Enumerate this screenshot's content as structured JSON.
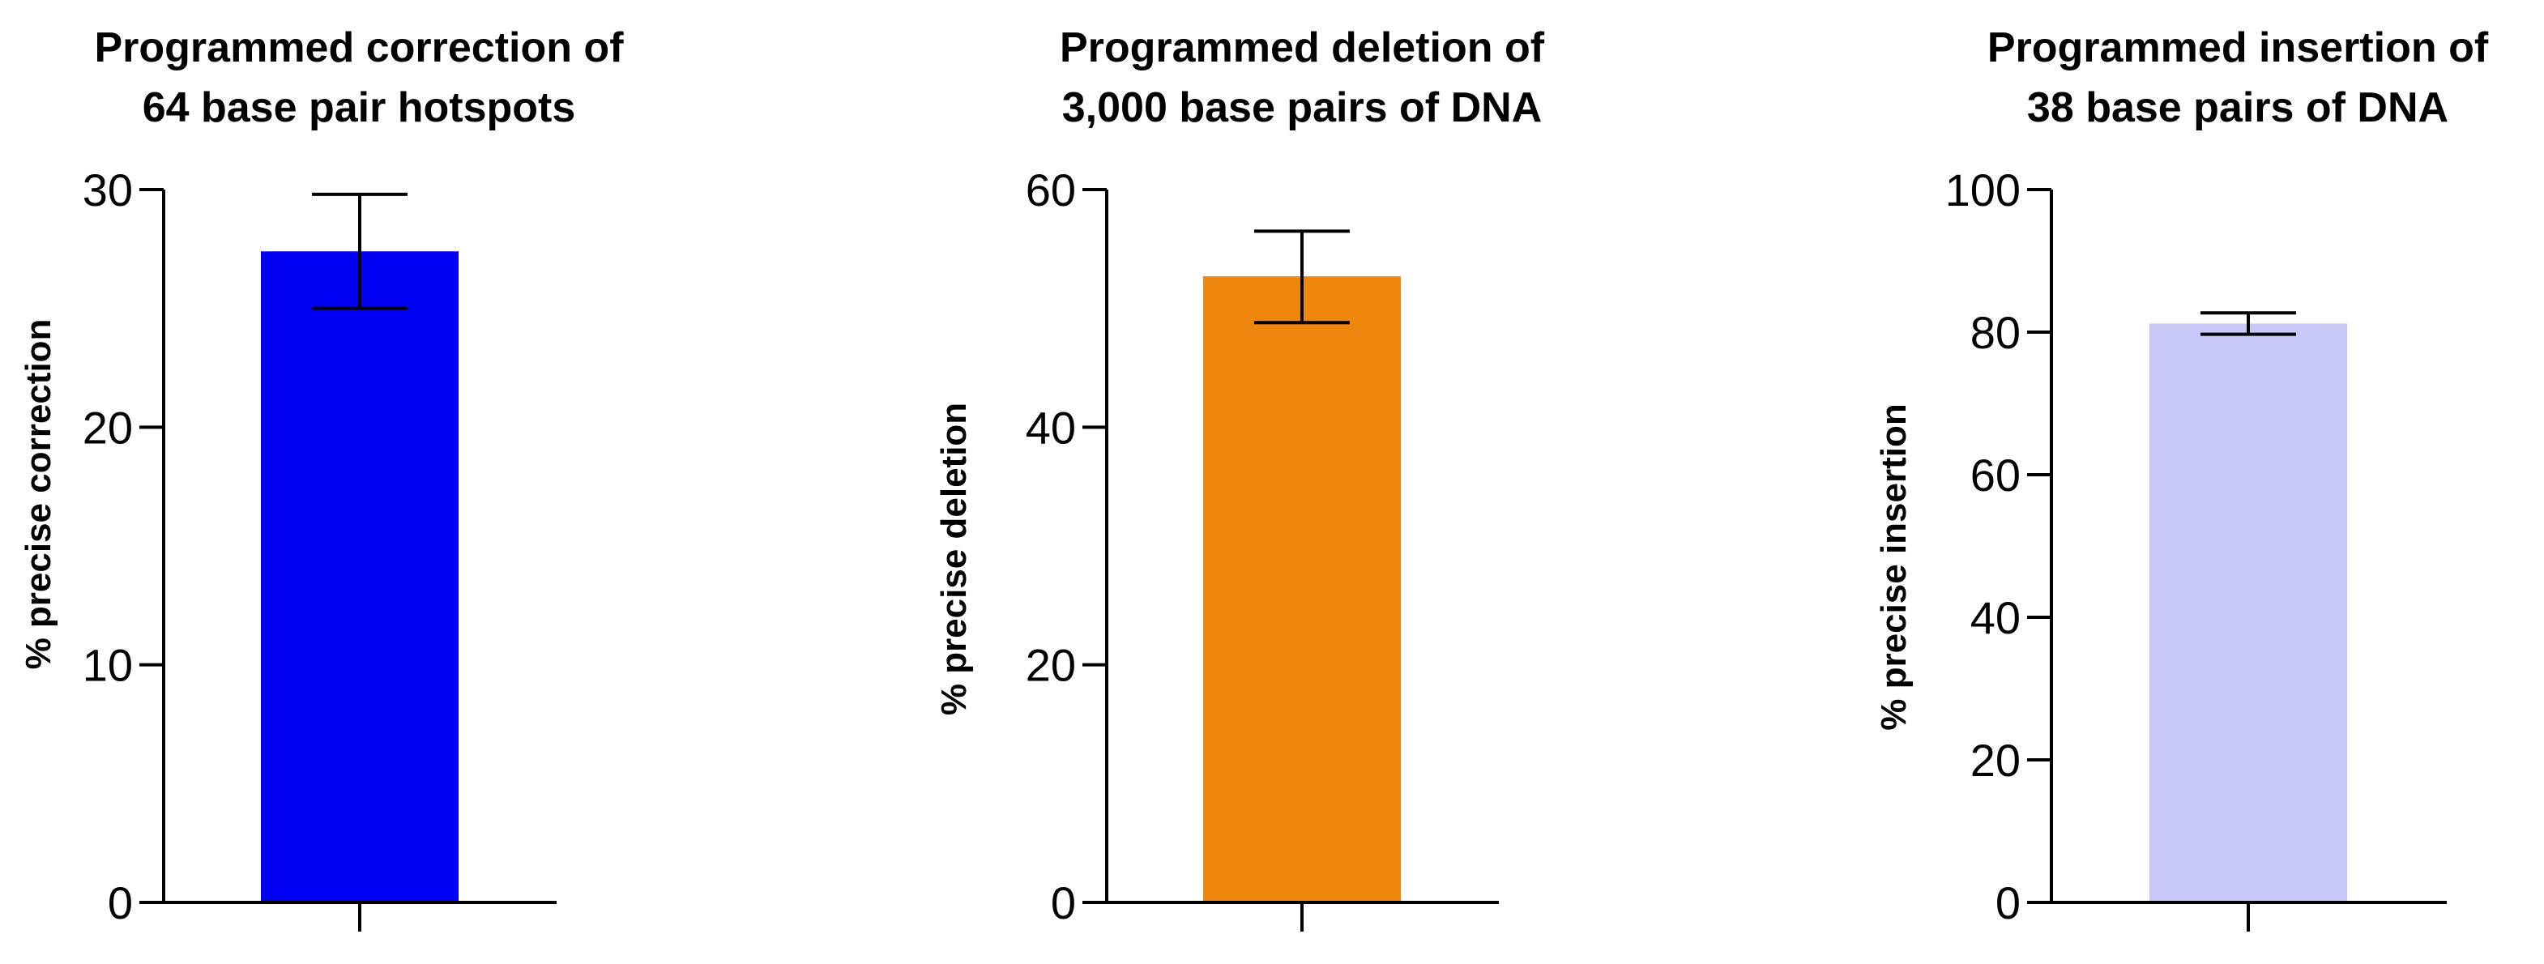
{
  "chart_data": [
    {
      "type": "bar",
      "title": [
        "Programmed correction of",
        "64 base pair hotspots"
      ],
      "xlabel": "",
      "ylabel": "% precise correction",
      "ylim": [
        0,
        30
      ],
      "yticks": [
        "0",
        "10",
        "20",
        "30"
      ],
      "categories": [
        ""
      ],
      "values": [
        27.4
      ],
      "error_low": [
        25.0
      ],
      "error_high": [
        29.8
      ],
      "color": "#0000F5"
    },
    {
      "type": "bar",
      "title": [
        "Programmed deletion of",
        "3,000 base pairs of DNA"
      ],
      "xlabel": "",
      "ylabel": "% precise deletion",
      "ylim": [
        0,
        60
      ],
      "yticks": [
        "0",
        "20",
        "40",
        "60"
      ],
      "categories": [
        ""
      ],
      "values": [
        52.7
      ],
      "error_low": [
        48.8
      ],
      "error_high": [
        56.5
      ],
      "color": "#EF860D"
    },
    {
      "type": "bar",
      "title": [
        "Programmed insertion of",
        "38 base pairs of DNA"
      ],
      "xlabel": "",
      "ylabel": "% precise insertion",
      "ylim": [
        0,
        100
      ],
      "yticks": [
        "0",
        "20",
        "40",
        "60",
        "80",
        "100"
      ],
      "categories": [
        ""
      ],
      "values": [
        81.2
      ],
      "error_low": [
        79.7
      ],
      "error_high": [
        82.7
      ],
      "color": "#C8C8F8"
    }
  ]
}
